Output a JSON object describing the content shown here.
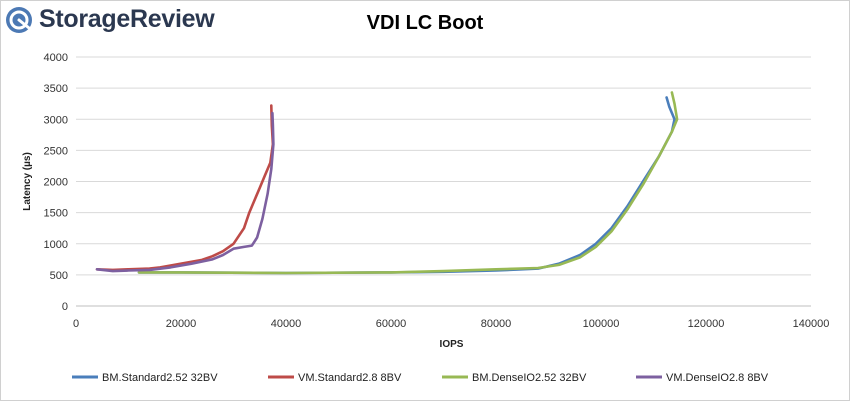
{
  "brand": {
    "name": "StorageReview"
  },
  "colors": {
    "brand_text": "#2b3850",
    "logo_blue": "#4c79b4",
    "grid": "#d9d9d9"
  },
  "chart_data": {
    "type": "line",
    "title": "VDI LC Boot",
    "xlabel": "IOPS",
    "ylabel": "Latency (µs)",
    "xlim": [
      0,
      140000
    ],
    "ylim": [
      0,
      4000
    ],
    "x_ticks": [
      0,
      20000,
      40000,
      60000,
      80000,
      100000,
      120000,
      140000
    ],
    "y_ticks": [
      0,
      500,
      1000,
      1500,
      2000,
      2500,
      3000,
      3500,
      4000
    ],
    "grid": "horizontal",
    "legend_position": "bottom",
    "series": [
      {
        "name": "BM.Standard2.52 32BV",
        "color": "#4a7ebb",
        "points": [
          [
            12000,
            540
          ],
          [
            20000,
            540
          ],
          [
            40000,
            530
          ],
          [
            60000,
            540
          ],
          [
            70000,
            550
          ],
          [
            80000,
            570
          ],
          [
            88000,
            600
          ],
          [
            92000,
            680
          ],
          [
            96000,
            820
          ],
          [
            99000,
            1000
          ],
          [
            102000,
            1250
          ],
          [
            105000,
            1600
          ],
          [
            108000,
            2000
          ],
          [
            111000,
            2400
          ],
          [
            113500,
            2800
          ],
          [
            114000,
            3000
          ],
          [
            113000,
            3200
          ],
          [
            112500,
            3350
          ]
        ]
      },
      {
        "name": "VM.Standard2.8 8BV",
        "color": "#be4b48",
        "points": [
          [
            4000,
            590
          ],
          [
            7000,
            580
          ],
          [
            10000,
            590
          ],
          [
            14000,
            600
          ],
          [
            16000,
            620
          ],
          [
            20000,
            680
          ],
          [
            24000,
            740
          ],
          [
            26000,
            800
          ],
          [
            28000,
            880
          ],
          [
            30000,
            1000
          ],
          [
            32000,
            1250
          ],
          [
            33000,
            1500
          ],
          [
            34000,
            1700
          ],
          [
            35000,
            1900
          ],
          [
            36000,
            2100
          ],
          [
            37000,
            2300
          ],
          [
            37500,
            2600
          ],
          [
            37300,
            2900
          ],
          [
            37200,
            3220
          ]
        ]
      },
      {
        "name": "BM.DenseIO2.52 32BV",
        "color": "#98b954",
        "points": [
          [
            12000,
            540
          ],
          [
            20000,
            540
          ],
          [
            40000,
            530
          ],
          [
            60000,
            540
          ],
          [
            70000,
            560
          ],
          [
            80000,
            590
          ],
          [
            88000,
            610
          ],
          [
            92000,
            660
          ],
          [
            96000,
            780
          ],
          [
            99000,
            950
          ],
          [
            102000,
            1200
          ],
          [
            105000,
            1550
          ],
          [
            108000,
            1950
          ],
          [
            111000,
            2400
          ],
          [
            113500,
            2800
          ],
          [
            114500,
            3000
          ],
          [
            114000,
            3250
          ],
          [
            113500,
            3430
          ]
        ]
      },
      {
        "name": "VM.DenseIO2.8 8BV",
        "color": "#7d60a0",
        "points": [
          [
            4000,
            590
          ],
          [
            7000,
            560
          ],
          [
            10000,
            570
          ],
          [
            14000,
            580
          ],
          [
            18000,
            620
          ],
          [
            22000,
            680
          ],
          [
            26000,
            750
          ],
          [
            28000,
            820
          ],
          [
            30000,
            920
          ],
          [
            32000,
            950
          ],
          [
            33500,
            970
          ],
          [
            34500,
            1100
          ],
          [
            35500,
            1400
          ],
          [
            36500,
            1800
          ],
          [
            37200,
            2200
          ],
          [
            37600,
            2600
          ],
          [
            37500,
            2900
          ],
          [
            37400,
            3100
          ]
        ]
      }
    ]
  }
}
